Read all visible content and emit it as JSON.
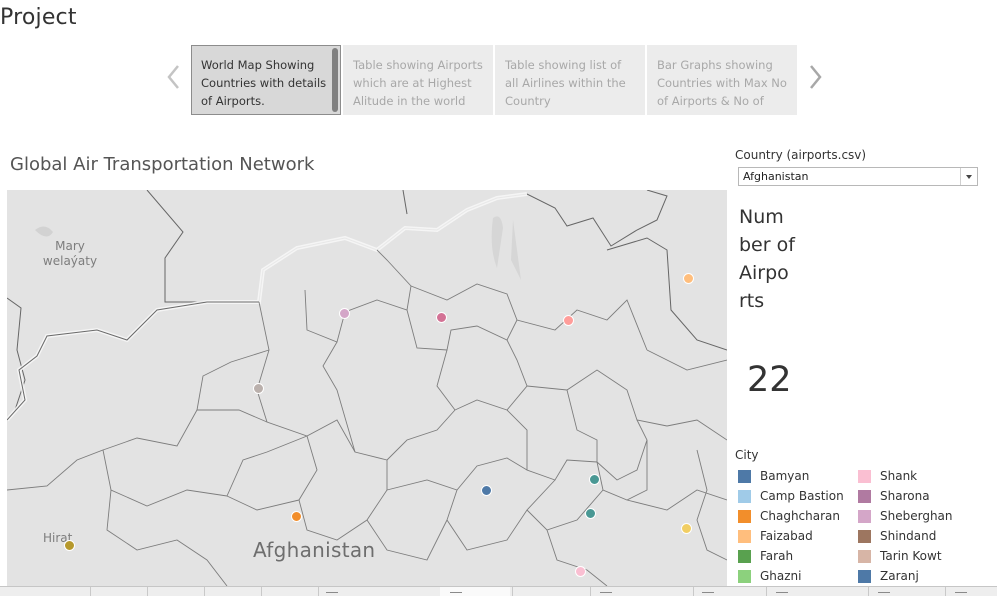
{
  "page": {
    "title": "Project"
  },
  "story": {
    "points": [
      {
        "label": "World Map Showing Countries with details of Airports.",
        "active": true
      },
      {
        "label": "Table showing Airports which are at Highest Alitude in the world",
        "active": false
      },
      {
        "label": "Table showing list of all Airlines within the Country",
        "active": false
      },
      {
        "label": "Bar Graphs showing Countries with Max No of Airports & No of",
        "active": false
      }
    ]
  },
  "map": {
    "title": "Global Air Transportation Network",
    "labels": {
      "region": "Mary welaýaty",
      "city": "Hirat",
      "country": "Afghanistan"
    }
  },
  "filter": {
    "label": "Country (airports.csv)",
    "selected": "Afghanistan"
  },
  "kpi": {
    "label": "Number of Airports",
    "value": "22"
  },
  "legend": {
    "title": "City",
    "items": [
      {
        "name": "Bamyan",
        "color": "#4e79a7"
      },
      {
        "name": "Camp Bastion",
        "color": "#a0cbe8"
      },
      {
        "name": "Chaghcharan",
        "color": "#f28e2b"
      },
      {
        "name": "Faizabad",
        "color": "#ffbe7d"
      },
      {
        "name": "Farah",
        "color": "#59a14f"
      },
      {
        "name": "Ghazni",
        "color": "#8cd17d"
      },
      {
        "name": "Shank",
        "color": "#fabfd2"
      },
      {
        "name": "Sharona",
        "color": "#b07aa1"
      },
      {
        "name": "Sheberghan",
        "color": "#d4a6c8"
      },
      {
        "name": "Shindand",
        "color": "#9d7660"
      },
      {
        "name": "Tarin Kowt",
        "color": "#d7b5a6"
      },
      {
        "name": "Zaranj",
        "color": "#4e79a7"
      }
    ]
  }
}
